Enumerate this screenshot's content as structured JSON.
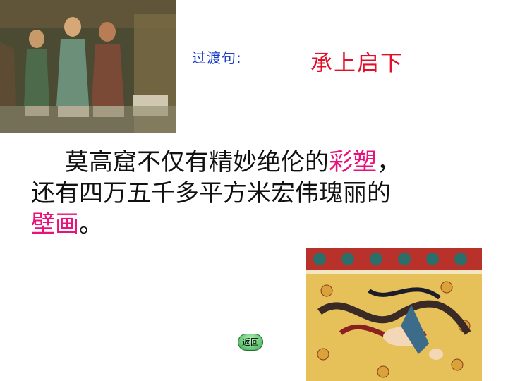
{
  "slide": {
    "transition_label": "过渡句:",
    "transition_answer": "承上启下",
    "paragraph": {
      "line1_prefix": "莫高窟不仅有精妙绝伦的",
      "line1_highlight": "彩塑",
      "line1_suffix": "，",
      "line2": "还有四万五千多平方米宏伟瑰丽的",
      "line3_highlight": "壁画",
      "line3_suffix": "。"
    },
    "back_button_label": "返回"
  },
  "colors": {
    "label_blue": "#1a3cc9",
    "answer_red": "#e0102a",
    "highlight_pink": "#e8127a",
    "button_green": "#6fcf7e"
  }
}
